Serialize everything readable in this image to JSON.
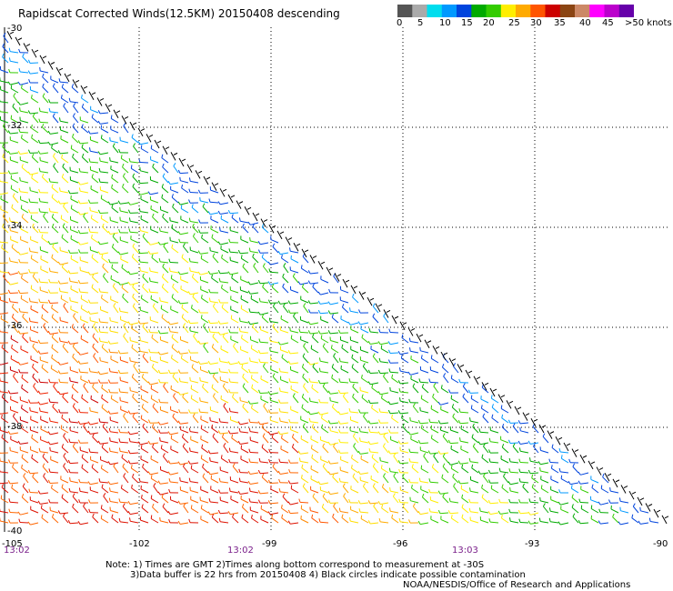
{
  "title": "Rapidscat Corrected Winds(12.5KM) 20150408 descending",
  "colorbar": {
    "colors": [
      "#555555",
      "#aaaaaa",
      "#00ddee",
      "#0099ff",
      "#0044dd",
      "#00aa00",
      "#33cc00",
      "#ffee00",
      "#ffaa00",
      "#ff5500",
      "#cc0000",
      "#8b4513",
      "#cc8866",
      "#ff00ff",
      "#bb00cc",
      "#6600aa"
    ],
    "labels": [
      "0",
      "5",
      "10",
      "15",
      "20",
      "25",
      "30",
      "35",
      "40",
      "45",
      ">50 knots"
    ]
  },
  "map": {
    "lat_labels": [
      "-30",
      "-32",
      "-34",
      "-36",
      "-38",
      "-40"
    ],
    "lon_labels": [
      "-105",
      "-102",
      "-99",
      "-96",
      "-93",
      "-90"
    ],
    "time_labels": [
      "13:02",
      "13:02",
      "13:03"
    ],
    "lon_range": [
      -105,
      -90
    ],
    "lat_range": [
      -40,
      -30
    ]
  },
  "notes": {
    "line1": "Note: 1) Times are GMT 2)Times along bottom correspond to measurement at -30S",
    "line2": "3)Data buffer is 22 hrs from 20150408 4) Black circles indicate possible contamination",
    "line3": "NOAA/NESDIS/Office of Research and Applications"
  }
}
